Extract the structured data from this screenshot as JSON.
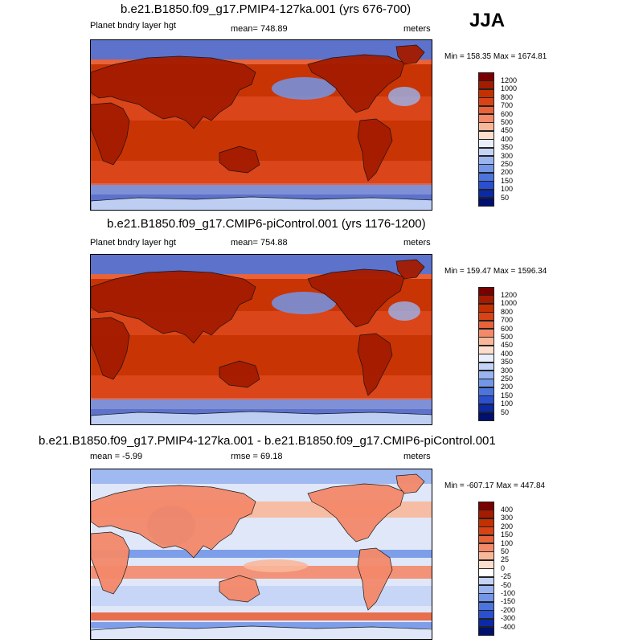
{
  "season": "JJA",
  "chart_data": [
    {
      "type": "heatmap",
      "title": "b.e21.B1850.f09_g17.PMIP4-127ka.001 (yrs 676-700)",
      "left_label": "Planet bndry layer hgt",
      "center_label": "mean= 748.89",
      "right_label": "meters",
      "minmax": "Min = 158.35 Max = 1674.81",
      "min": 158.35,
      "max": 1674.81,
      "mean": 748.89,
      "levels": [
        "1200",
        "1000",
        "800",
        "700",
        "600",
        "500",
        "450",
        "400",
        "350",
        "300",
        "250",
        "200",
        "150",
        "100",
        "50"
      ],
      "colors": [
        "#7a0000",
        "#a41b00",
        "#c53000",
        "#d84316",
        "#e8623a",
        "#f4896a",
        "#f9b79a",
        "#fdddcc",
        "#e8eefc",
        "#c4d3f6",
        "#9ab4ef",
        "#7396e8",
        "#4c74dc",
        "#2a4fcf",
        "#0b2aa8",
        "#00106e"
      ]
    },
    {
      "type": "heatmap",
      "title": "b.e21.B1850.f09_g17.CMIP6-piControl.001 (yrs 1176-1200)",
      "left_label": "Planet bndry layer hgt",
      "center_label": "mean= 754.88",
      "right_label": "meters",
      "minmax": "Min = 159.47 Max = 1596.34",
      "min": 159.47,
      "max": 1596.34,
      "mean": 754.88,
      "levels": [
        "1200",
        "1000",
        "800",
        "700",
        "600",
        "500",
        "450",
        "400",
        "350",
        "300",
        "250",
        "200",
        "150",
        "100",
        "50"
      ],
      "colors": [
        "#7a0000",
        "#a41b00",
        "#c53000",
        "#d84316",
        "#e8623a",
        "#f4896a",
        "#f9b79a",
        "#fdddcc",
        "#e8eefc",
        "#c4d3f6",
        "#9ab4ef",
        "#7396e8",
        "#4c74dc",
        "#2a4fcf",
        "#0b2aa8",
        "#00106e"
      ]
    },
    {
      "type": "heatmap",
      "title": "b.e21.B1850.f09_g17.PMIP4-127ka.001 - b.e21.B1850.f09_g17.CMIP6-piControl.001",
      "left_label": "mean =  -5.99",
      "center_label": "rmse =  69.18",
      "right_label": "meters",
      "minmax": "Min = -607.17 Max = 447.84",
      "min": -607.17,
      "max": 447.84,
      "mean": -5.99,
      "rmse": 69.18,
      "levels": [
        "400",
        "300",
        "200",
        "150",
        "100",
        "50",
        "25",
        "0",
        "-25",
        "-50",
        "-100",
        "-150",
        "-200",
        "-300",
        "-400"
      ],
      "colors": [
        "#7a0000",
        "#a41b00",
        "#c53000",
        "#d84316",
        "#e8623a",
        "#f4896a",
        "#f9b79a",
        "#fdddcc",
        "#ffffff",
        "#c4d3f6",
        "#9ab4ef",
        "#7396e8",
        "#4c74dc",
        "#2a4fcf",
        "#0b2aa8",
        "#00106e"
      ]
    }
  ]
}
